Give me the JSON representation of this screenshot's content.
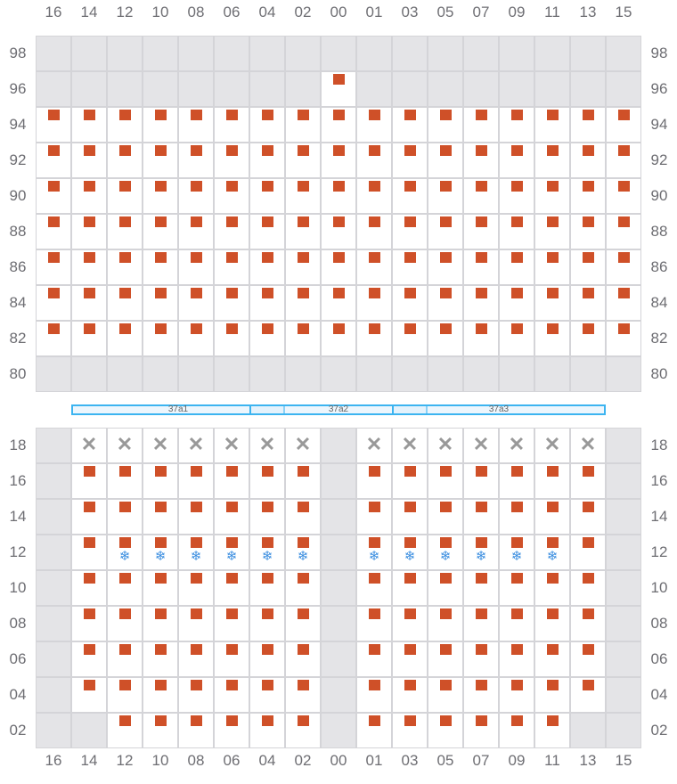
{
  "columns": [
    "16",
    "14",
    "12",
    "10",
    "08",
    "06",
    "04",
    "02",
    "00",
    "01",
    "03",
    "05",
    "07",
    "09",
    "11",
    "13",
    "15"
  ],
  "top_section": {
    "rows": [
      {
        "label": "98",
        "cells": "ggggggggggggggggg"
      },
      {
        "label": "96",
        "cells": "ggggggggmgggggggg"
      },
      {
        "label": "94",
        "cells": "mmmmmmmmmmmmmmmmm"
      },
      {
        "label": "92",
        "cells": "mmmmmmmmmmmmmmmmm"
      },
      {
        "label": "90",
        "cells": "mmmmmmmmmmmmmmmmm"
      },
      {
        "label": "88",
        "cells": "mmmmmmmmmmmmmmmmm"
      },
      {
        "label": "86",
        "cells": "mmmmmmmmmmmmmmmmm"
      },
      {
        "label": "84",
        "cells": "mmmmmmmmmmmmmmmmm"
      },
      {
        "label": "82",
        "cells": "mmmmmmmmmmmmmmmmm"
      },
      {
        "label": "80",
        "cells": "ggggggggggggggggg"
      }
    ]
  },
  "zones": [
    {
      "label": "37a1"
    },
    {
      "label": "37a2"
    },
    {
      "label": "37a3"
    }
  ],
  "bottom_section": {
    "rows": [
      {
        "label": "18",
        "cells": "gxxxxxxxgxxxxxxxg"
      },
      {
        "label": "16",
        "cells": "gmmmmmmmgmmmmmmmg"
      },
      {
        "label": "14",
        "cells": "gmmmmmmmgmmmmmmmg"
      },
      {
        "label": "12",
        "cells": "gmssssssgssssssmg"
      },
      {
        "label": "10",
        "cells": "gmmmmmmmgmmmmmmmg"
      },
      {
        "label": "08",
        "cells": "gmmmmmmmgmmmmmmmg"
      },
      {
        "label": "06",
        "cells": "gmmmmmmmgmmmmmmmg"
      },
      {
        "label": "04",
        "cells": "gmmmmmmmgmmmmmmmg"
      },
      {
        "label": "02",
        "cells": "ggmmmmmmgmmmmmmgg"
      }
    ]
  },
  "legend_glyphs": {
    "cross": "✕",
    "snowflake": "❄"
  },
  "colors": {
    "marker": "#cf5028",
    "unavailable": "#e4e4e7",
    "zone_border": "#3cb4f0",
    "snowflake": "#3d8fe0"
  }
}
